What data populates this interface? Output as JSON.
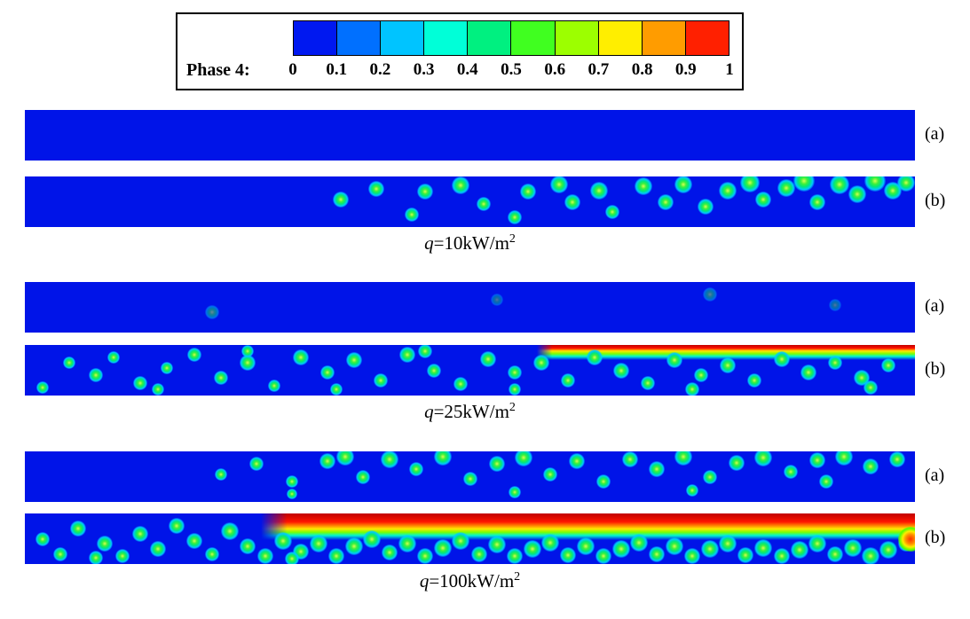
{
  "colors": {
    "liquid": "#0014e8"
  },
  "colorbar": {
    "title": "Phase 4:",
    "tick_labels": [
      "0",
      "0.1",
      "0.2",
      "0.3",
      "0.4",
      "0.5",
      "0.6",
      "0.7",
      "0.8",
      "0.9",
      "1"
    ],
    "segment_colors": [
      "#0018f0",
      "#0070ff",
      "#00c4ff",
      "#00ffd8",
      "#00f080",
      "#40ff20",
      "#9cff00",
      "#ffee00",
      "#ff9c00",
      "#ff2000"
    ]
  },
  "chart_data": {
    "type": "heatmap",
    "quantity": "Phase 4 volume fraction",
    "value_range": [
      0,
      1
    ],
    "colormap": "jet (blue to red)",
    "legend_position": "top",
    "groups": [
      {
        "caption": {
          "var": "q",
          "rest": "=10kW/m",
          "sup": "2"
        },
        "strips": [
          {
            "label": "(a)",
            "description": "uniform liquid, phase 4 near 0 everywhere",
            "bubbles": [],
            "bands": [],
            "hot_spots": []
          },
          {
            "label": "(b)",
            "description": "sparse small bubbles, mostly downstream upper half",
            "bubbles": [
              [
                0.355,
                0.45,
                9
              ],
              [
                0.395,
                0.25,
                9
              ],
              [
                0.435,
                0.75,
                8
              ],
              [
                0.45,
                0.3,
                9
              ],
              [
                0.49,
                0.18,
                10
              ],
              [
                0.515,
                0.55,
                8
              ],
              [
                0.55,
                0.8,
                8
              ],
              [
                0.565,
                0.3,
                9
              ],
              [
                0.6,
                0.15,
                10
              ],
              [
                0.615,
                0.5,
                9
              ],
              [
                0.645,
                0.28,
                10
              ],
              [
                0.66,
                0.7,
                8
              ],
              [
                0.695,
                0.2,
                10
              ],
              [
                0.72,
                0.5,
                9
              ],
              [
                0.74,
                0.15,
                10
              ],
              [
                0.765,
                0.6,
                9
              ],
              [
                0.79,
                0.28,
                10
              ],
              [
                0.815,
                0.12,
                11
              ],
              [
                0.83,
                0.45,
                9
              ],
              [
                0.855,
                0.22,
                10
              ],
              [
                0.875,
                0.08,
                12
              ],
              [
                0.89,
                0.5,
                9
              ],
              [
                0.915,
                0.15,
                11
              ],
              [
                0.935,
                0.35,
                10
              ],
              [
                0.955,
                0.08,
                12
              ],
              [
                0.975,
                0.28,
                10
              ],
              [
                0.99,
                0.12,
                10
              ]
            ],
            "bands": [],
            "hot_spots": []
          }
        ]
      },
      {
        "caption": {
          "var": "q",
          "rest": "=25kW/m",
          "sup": "2"
        },
        "strips": [
          {
            "label": "(a)",
            "description": "almost uniform liquid with a few faint nuclei",
            "bubbles": [
              [
                0.21,
                0.6,
                8,
                0.5
              ],
              [
                0.53,
                0.35,
                7,
                0.4
              ],
              [
                0.77,
                0.25,
                8,
                0.45
              ],
              [
                0.91,
                0.45,
                7,
                0.4
              ]
            ],
            "bands": [],
            "hot_spots": []
          },
          {
            "label": "(b)",
            "description": "many bubbles plus thin vapor layer along top wall downstream",
            "bubbles": [
              [
                0.02,
                0.85,
                7
              ],
              [
                0.05,
                0.35,
                7
              ],
              [
                0.08,
                0.6,
                8
              ],
              [
                0.1,
                0.25,
                7
              ],
              [
                0.13,
                0.75,
                8
              ],
              [
                0.16,
                0.45,
                7
              ],
              [
                0.19,
                0.2,
                8
              ],
              [
                0.22,
                0.65,
                8
              ],
              [
                0.25,
                0.35,
                9
              ],
              [
                0.28,
                0.8,
                7
              ],
              [
                0.31,
                0.25,
                9
              ],
              [
                0.34,
                0.55,
                8
              ],
              [
                0.37,
                0.3,
                9
              ],
              [
                0.4,
                0.7,
                8
              ],
              [
                0.43,
                0.2,
                9
              ],
              [
                0.46,
                0.5,
                8
              ],
              [
                0.49,
                0.78,
                8
              ],
              [
                0.52,
                0.28,
                9
              ],
              [
                0.55,
                0.55,
                8
              ],
              [
                0.58,
                0.35,
                9
              ],
              [
                0.61,
                0.7,
                8
              ],
              [
                0.64,
                0.25,
                9
              ],
              [
                0.67,
                0.5,
                9
              ],
              [
                0.7,
                0.75,
                8
              ],
              [
                0.73,
                0.3,
                9
              ],
              [
                0.76,
                0.6,
                8
              ],
              [
                0.79,
                0.4,
                9
              ],
              [
                0.82,
                0.7,
                8
              ],
              [
                0.85,
                0.28,
                9
              ],
              [
                0.88,
                0.55,
                9
              ],
              [
                0.91,
                0.35,
                8
              ],
              [
                0.94,
                0.65,
                9
              ],
              [
                0.97,
                0.4,
                8
              ],
              [
                0.15,
                0.88,
                7
              ],
              [
                0.35,
                0.88,
                7
              ],
              [
                0.55,
                0.88,
                7
              ],
              [
                0.75,
                0.88,
                8
              ],
              [
                0.95,
                0.85,
                8
              ],
              [
                0.25,
                0.12,
                7
              ],
              [
                0.45,
                0.12,
                8
              ]
            ],
            "bands": [
              {
                "x0": 0.575,
                "x1": 1.0,
                "core_h": 0.12,
                "fringe_h": 0.3
              }
            ],
            "hot_spots": []
          }
        ]
      },
      {
        "caption": {
          "var": "q",
          "rest": "=100kW/m",
          "sup": "2"
        },
        "strips": [
          {
            "label": "(a)",
            "description": "scattered bubbles over most of channel, biased to top wall",
            "bubbles": [
              [
                0.22,
                0.45,
                7
              ],
              [
                0.26,
                0.25,
                8
              ],
              [
                0.3,
                0.6,
                7
              ],
              [
                0.34,
                0.2,
                9
              ],
              [
                0.36,
                0.1,
                10
              ],
              [
                0.38,
                0.5,
                8
              ],
              [
                0.41,
                0.15,
                10
              ],
              [
                0.44,
                0.35,
                8
              ],
              [
                0.47,
                0.1,
                10
              ],
              [
                0.5,
                0.55,
                8
              ],
              [
                0.53,
                0.25,
                9
              ],
              [
                0.56,
                0.12,
                10
              ],
              [
                0.59,
                0.45,
                8
              ],
              [
                0.62,
                0.2,
                9
              ],
              [
                0.65,
                0.6,
                8
              ],
              [
                0.68,
                0.15,
                9
              ],
              [
                0.71,
                0.35,
                9
              ],
              [
                0.74,
                0.1,
                10
              ],
              [
                0.77,
                0.5,
                8
              ],
              [
                0.8,
                0.22,
                9
              ],
              [
                0.83,
                0.12,
                10
              ],
              [
                0.86,
                0.4,
                8
              ],
              [
                0.89,
                0.18,
                9
              ],
              [
                0.92,
                0.1,
                10
              ],
              [
                0.95,
                0.3,
                9
              ],
              [
                0.98,
                0.15,
                9
              ],
              [
                0.3,
                0.85,
                6
              ],
              [
                0.55,
                0.8,
                7
              ],
              [
                0.75,
                0.78,
                7
              ],
              [
                0.9,
                0.6,
                8
              ]
            ],
            "bands": [],
            "hot_spots": []
          },
          {
            "label": "(b)",
            "description": "thick vapor film on top wall from mid-channel to outlet, dense bubbles below",
            "bubbles": [
              [
                0.02,
                0.5,
                8
              ],
              [
                0.04,
                0.8,
                8
              ],
              [
                0.06,
                0.3,
                9
              ],
              [
                0.09,
                0.6,
                9
              ],
              [
                0.11,
                0.85,
                8
              ],
              [
                0.13,
                0.4,
                9
              ],
              [
                0.15,
                0.7,
                9
              ],
              [
                0.17,
                0.25,
                9
              ],
              [
                0.19,
                0.55,
                9
              ],
              [
                0.21,
                0.8,
                8
              ],
              [
                0.23,
                0.35,
                10
              ],
              [
                0.25,
                0.65,
                9
              ],
              [
                0.27,
                0.85,
                9
              ],
              [
                0.29,
                0.55,
                10
              ],
              [
                0.31,
                0.75,
                9
              ],
              [
                0.33,
                0.6,
                10
              ],
              [
                0.35,
                0.85,
                9
              ],
              [
                0.37,
                0.65,
                10
              ],
              [
                0.39,
                0.5,
                10
              ],
              [
                0.41,
                0.78,
                9
              ],
              [
                0.43,
                0.6,
                10
              ],
              [
                0.45,
                0.85,
                9
              ],
              [
                0.47,
                0.68,
                10
              ],
              [
                0.49,
                0.55,
                10
              ],
              [
                0.51,
                0.8,
                9
              ],
              [
                0.53,
                0.62,
                10
              ],
              [
                0.55,
                0.85,
                9
              ],
              [
                0.57,
                0.7,
                10
              ],
              [
                0.59,
                0.58,
                10
              ],
              [
                0.61,
                0.82,
                9
              ],
              [
                0.63,
                0.65,
                10
              ],
              [
                0.65,
                0.85,
                9
              ],
              [
                0.67,
                0.7,
                10
              ],
              [
                0.69,
                0.58,
                10
              ],
              [
                0.71,
                0.8,
                9
              ],
              [
                0.73,
                0.65,
                10
              ],
              [
                0.75,
                0.85,
                9
              ],
              [
                0.77,
                0.7,
                10
              ],
              [
                0.79,
                0.6,
                10
              ],
              [
                0.81,
                0.82,
                9
              ],
              [
                0.83,
                0.68,
                10
              ],
              [
                0.85,
                0.85,
                9
              ],
              [
                0.87,
                0.72,
                10
              ],
              [
                0.89,
                0.6,
                10
              ],
              [
                0.91,
                0.8,
                9
              ],
              [
                0.93,
                0.68,
                10
              ],
              [
                0.95,
                0.85,
                10
              ],
              [
                0.97,
                0.72,
                10
              ],
              [
                0.99,
                0.6,
                9
              ],
              [
                0.08,
                0.88,
                8
              ],
              [
                0.3,
                0.9,
                8
              ]
            ],
            "bands": [
              {
                "x0": 0.265,
                "x1": 1.0,
                "core_h": 0.3,
                "fringe_h": 0.52
              }
            ],
            "hot_spots": [
              [
                0.995,
                0.5,
                14
              ]
            ]
          }
        ]
      }
    ]
  }
}
